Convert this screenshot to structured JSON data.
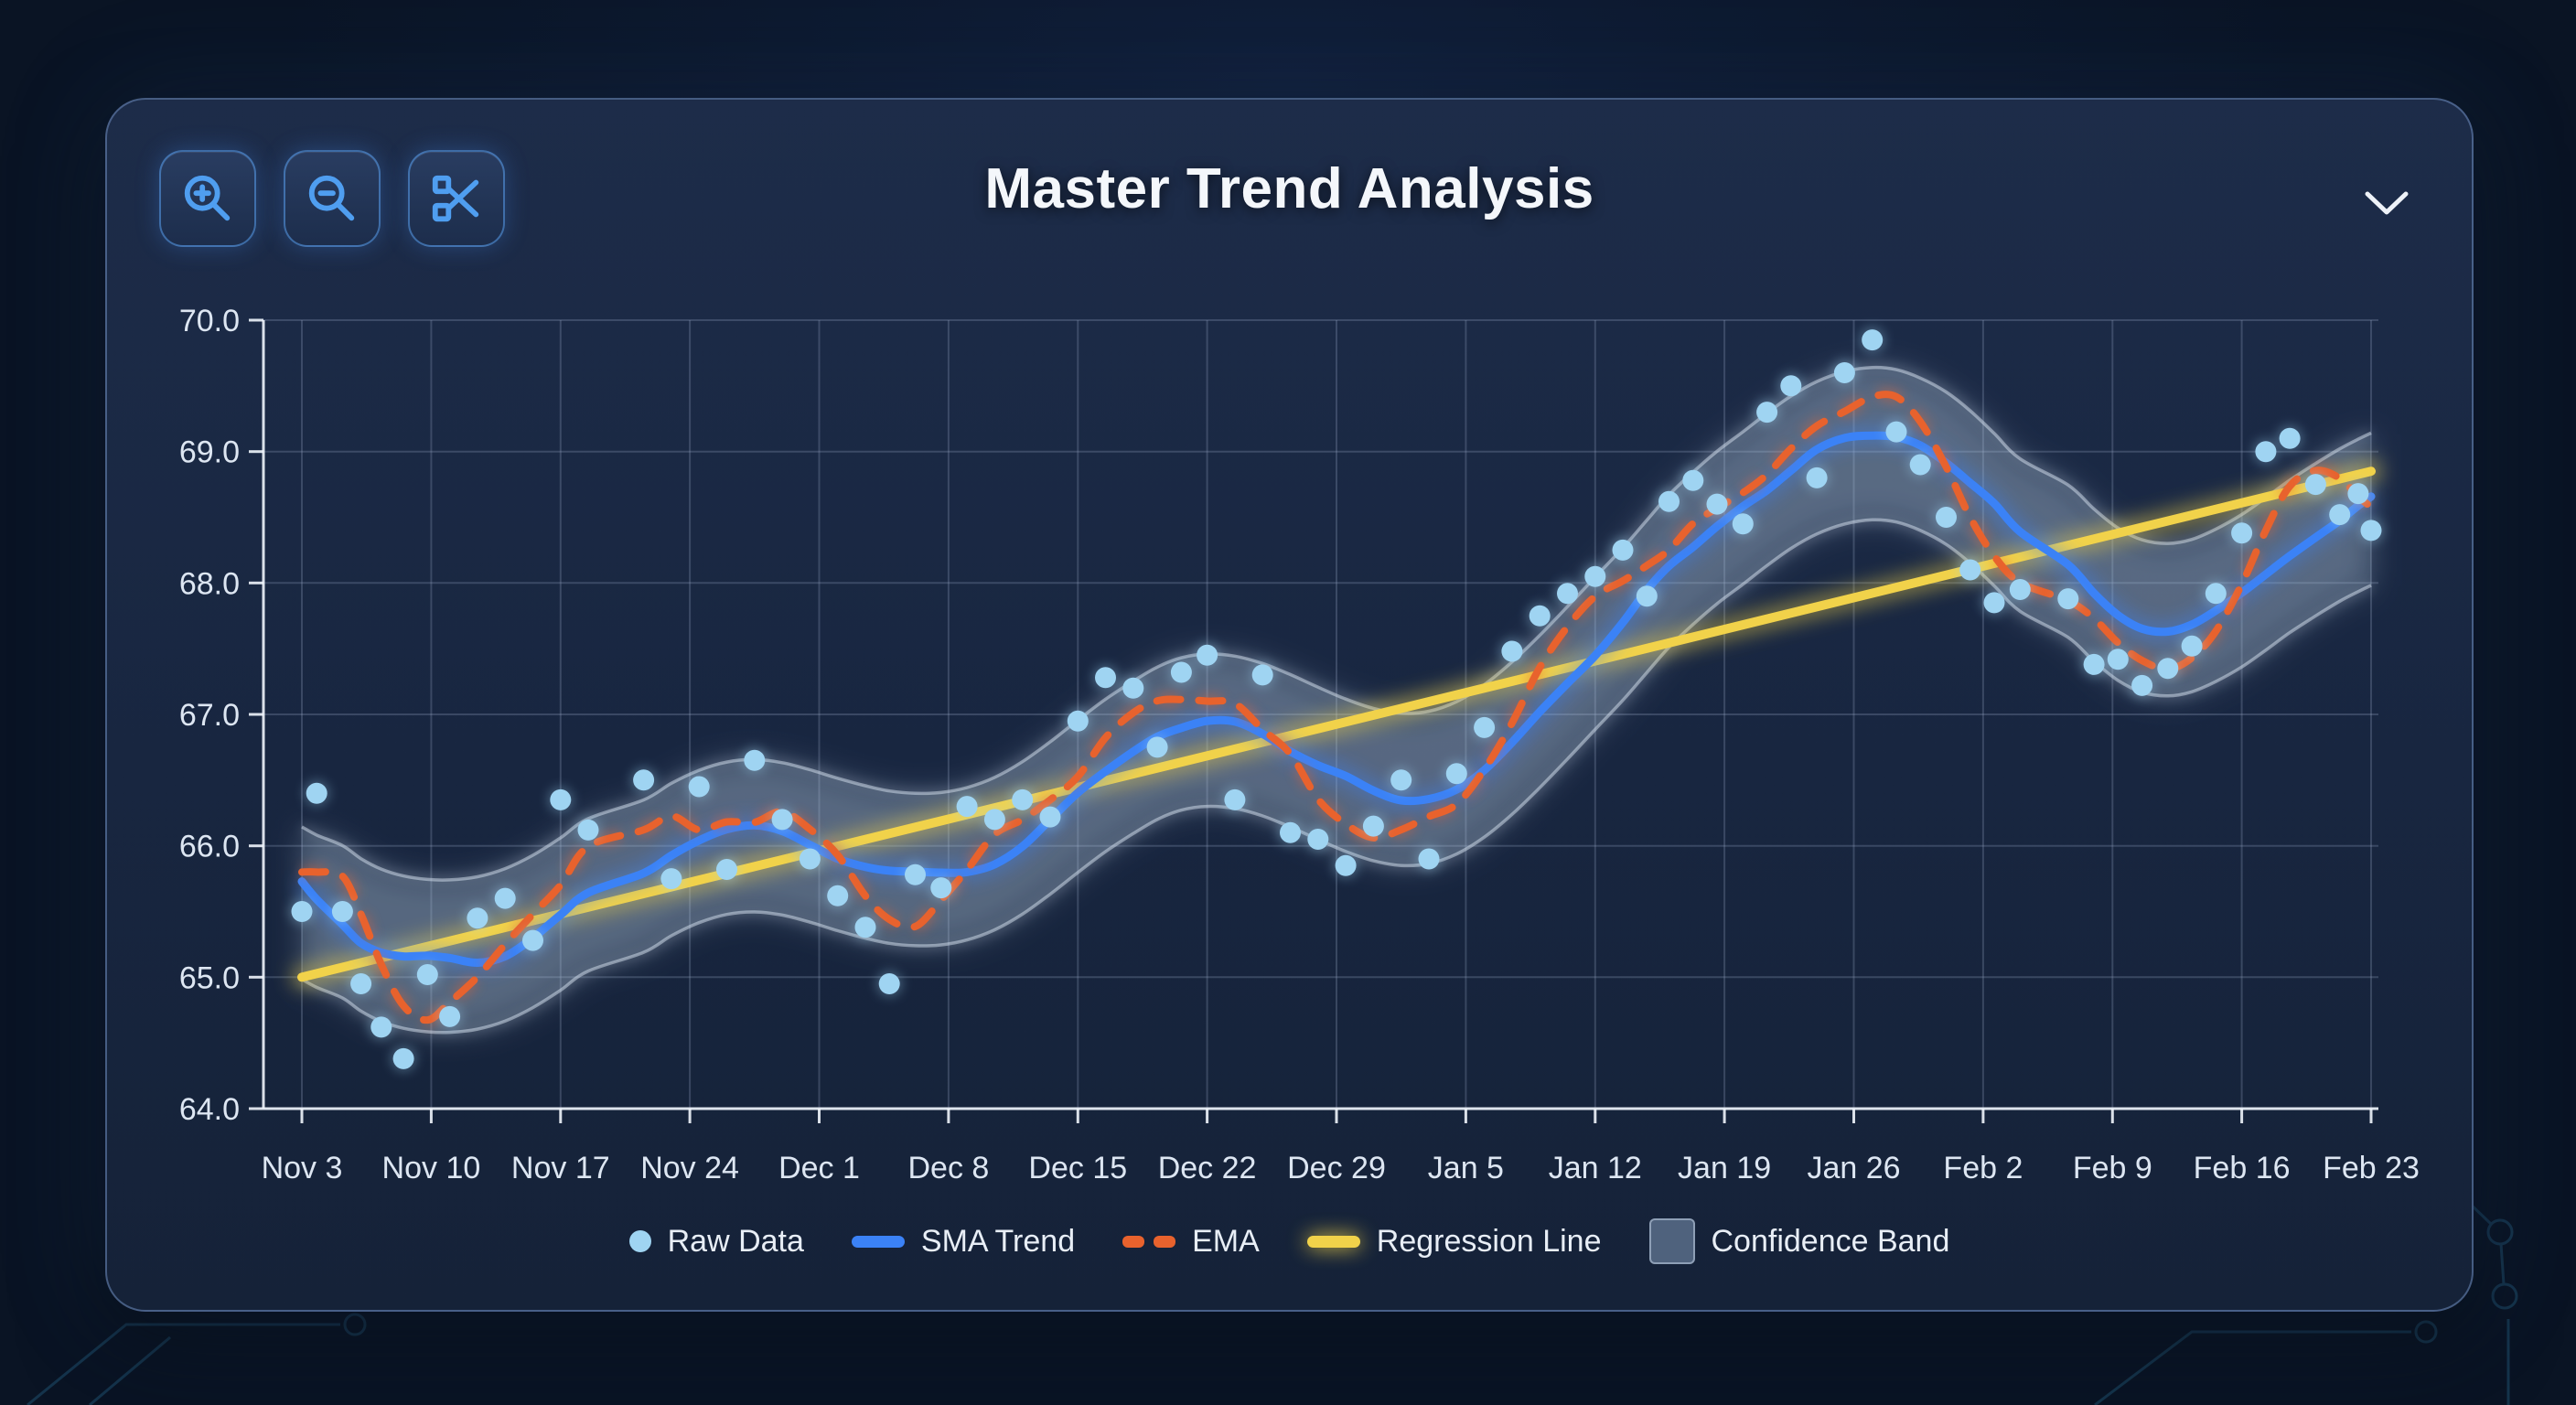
{
  "header": {
    "title": "Master Trend Analysis",
    "toolbar": [
      {
        "id": "zoom-in",
        "icon": "magnifier-plus-icon"
      },
      {
        "id": "zoom-out",
        "icon": "magnifier-minus-icon"
      },
      {
        "id": "crop",
        "icon": "scissors-icon"
      }
    ],
    "collapse_icon": "chevron-down-icon"
  },
  "colors": {
    "raw": "#9fd4f2",
    "sma": "#3b82f6",
    "ema": "#e8622d",
    "regression": "#f1d24a",
    "band_fill": "rgba(168,192,216,0.15)",
    "band_edge": "rgba(215,228,242,0.5)",
    "grid": "rgba(150,165,195,0.27)",
    "axis": "rgba(240,245,252,0.9)",
    "icon": "#4f9ef0"
  },
  "chart_data": {
    "type": "scatter+line",
    "title": "Master Trend Analysis",
    "ylim": [
      64.0,
      70.0
    ],
    "xlim_days": [
      0,
      112
    ],
    "grid": true,
    "legend_position": "bottom",
    "x_ticks": {
      "days": [
        0,
        7,
        14,
        21,
        28,
        35,
        42,
        49,
        56,
        63,
        70,
        77,
        84,
        91,
        98,
        105,
        112
      ],
      "labels": [
        "Nov 3",
        "Nov 10",
        "Nov 17",
        "Nov 24",
        "Dec 1",
        "Dec 8",
        "Dec 15",
        "Dec 22",
        "Dec 29",
        "Jan 5",
        "Jan 12",
        "Jan 19",
        "Jan 26",
        "Feb 2",
        "Feb 9",
        "Feb 16",
        "Feb 23"
      ]
    },
    "y_ticks": {
      "values": [
        70,
        69,
        68,
        67,
        66,
        65,
        64
      ],
      "labels": [
        "70.0",
        "69.0",
        "68.0",
        "67.0",
        "66.0",
        "65.0",
        "64.0"
      ]
    },
    "series": {
      "raw": {
        "name": "Raw Data",
        "type": "scatter",
        "color": "#9fd4f2",
        "points": [
          [
            0,
            65.5
          ],
          [
            0.8,
            66.4
          ],
          [
            2.2,
            65.5
          ],
          [
            3.2,
            64.95
          ],
          [
            4.3,
            64.62
          ],
          [
            5.5,
            64.38
          ],
          [
            6.8,
            65.02
          ],
          [
            8,
            64.7
          ],
          [
            9.5,
            65.45
          ],
          [
            11,
            65.6
          ],
          [
            12.5,
            65.28
          ],
          [
            14,
            66.35
          ],
          [
            15.5,
            66.12
          ],
          [
            18.5,
            66.5
          ],
          [
            20,
            65.75
          ],
          [
            21.5,
            66.45
          ],
          [
            23,
            65.82
          ],
          [
            24.5,
            66.65
          ],
          [
            26,
            66.2
          ],
          [
            27.5,
            65.9
          ],
          [
            29,
            65.62
          ],
          [
            30.5,
            65.38
          ],
          [
            31.8,
            64.95
          ],
          [
            33.2,
            65.78
          ],
          [
            34.6,
            65.68
          ],
          [
            36,
            66.3
          ],
          [
            37.5,
            66.2
          ],
          [
            39,
            66.35
          ],
          [
            40.5,
            66.22
          ],
          [
            42,
            66.95
          ],
          [
            43.5,
            67.28
          ],
          [
            45,
            67.2
          ],
          [
            46.3,
            66.75
          ],
          [
            47.6,
            67.32
          ],
          [
            49,
            67.45
          ],
          [
            50.5,
            66.35
          ],
          [
            52,
            67.3
          ],
          [
            53.5,
            66.1
          ],
          [
            55,
            66.05
          ],
          [
            56.5,
            65.85
          ],
          [
            58,
            66.15
          ],
          [
            59.5,
            66.5
          ],
          [
            61,
            65.9
          ],
          [
            62.5,
            66.55
          ],
          [
            64,
            66.9
          ],
          [
            65.5,
            67.48
          ],
          [
            67,
            67.75
          ],
          [
            68.5,
            67.92
          ],
          [
            70,
            68.05
          ],
          [
            71.5,
            68.25
          ],
          [
            72.8,
            67.9
          ],
          [
            74,
            68.62
          ],
          [
            75.3,
            68.78
          ],
          [
            76.6,
            68.6
          ],
          [
            78,
            68.45
          ],
          [
            79.3,
            69.3
          ],
          [
            80.6,
            69.5
          ],
          [
            82,
            68.8
          ],
          [
            83.5,
            69.6
          ],
          [
            85,
            69.85
          ],
          [
            86.3,
            69.15
          ],
          [
            87.6,
            68.9
          ],
          [
            89,
            68.5
          ],
          [
            90.3,
            68.1
          ],
          [
            91.6,
            67.85
          ],
          [
            93,
            67.95
          ],
          [
            95.6,
            67.88
          ],
          [
            97,
            67.38
          ],
          [
            98.3,
            67.42
          ],
          [
            99.6,
            67.22
          ],
          [
            101,
            67.35
          ],
          [
            102.3,
            67.52
          ],
          [
            103.6,
            67.92
          ],
          [
            105,
            68.38
          ],
          [
            106.3,
            69.0
          ],
          [
            107.6,
            69.1
          ],
          [
            109,
            68.75
          ],
          [
            110.3,
            68.52
          ],
          [
            111.3,
            68.68
          ],
          [
            112,
            68.4
          ]
        ]
      },
      "sma": {
        "name": "SMA Trend",
        "type": "line",
        "color": "#3b82f6",
        "method": "moving-average",
        "window": 9
      },
      "ema": {
        "name": "EMA",
        "type": "dashed-line",
        "color": "#e8622d",
        "method": "exponential",
        "window": 5
      },
      "regression": {
        "name": "Regression Line",
        "type": "line",
        "color": "#f1d24a",
        "from": [
          0,
          65.0
        ],
        "to": [
          112,
          68.85
        ]
      },
      "band": {
        "name": "Confidence Band",
        "type": "band",
        "half_width": 0.58,
        "fill": "rgba(168,192,216,0.15)",
        "edge": "rgba(215,228,242,0.5)"
      }
    },
    "legend": [
      {
        "label": "Raw Data",
        "swatch": "dot",
        "color": "#9fd4f2"
      },
      {
        "label": "SMA Trend",
        "swatch": "line",
        "color": "#3b82f6"
      },
      {
        "label": "EMA",
        "swatch": "dashes",
        "color": "#e8622d"
      },
      {
        "label": "Regression Line",
        "swatch": "glow-line",
        "color": "#f1d24a"
      },
      {
        "label": "Confidence Band",
        "swatch": "square",
        "color": "rgba(128,152,182,0.55)"
      }
    ]
  }
}
